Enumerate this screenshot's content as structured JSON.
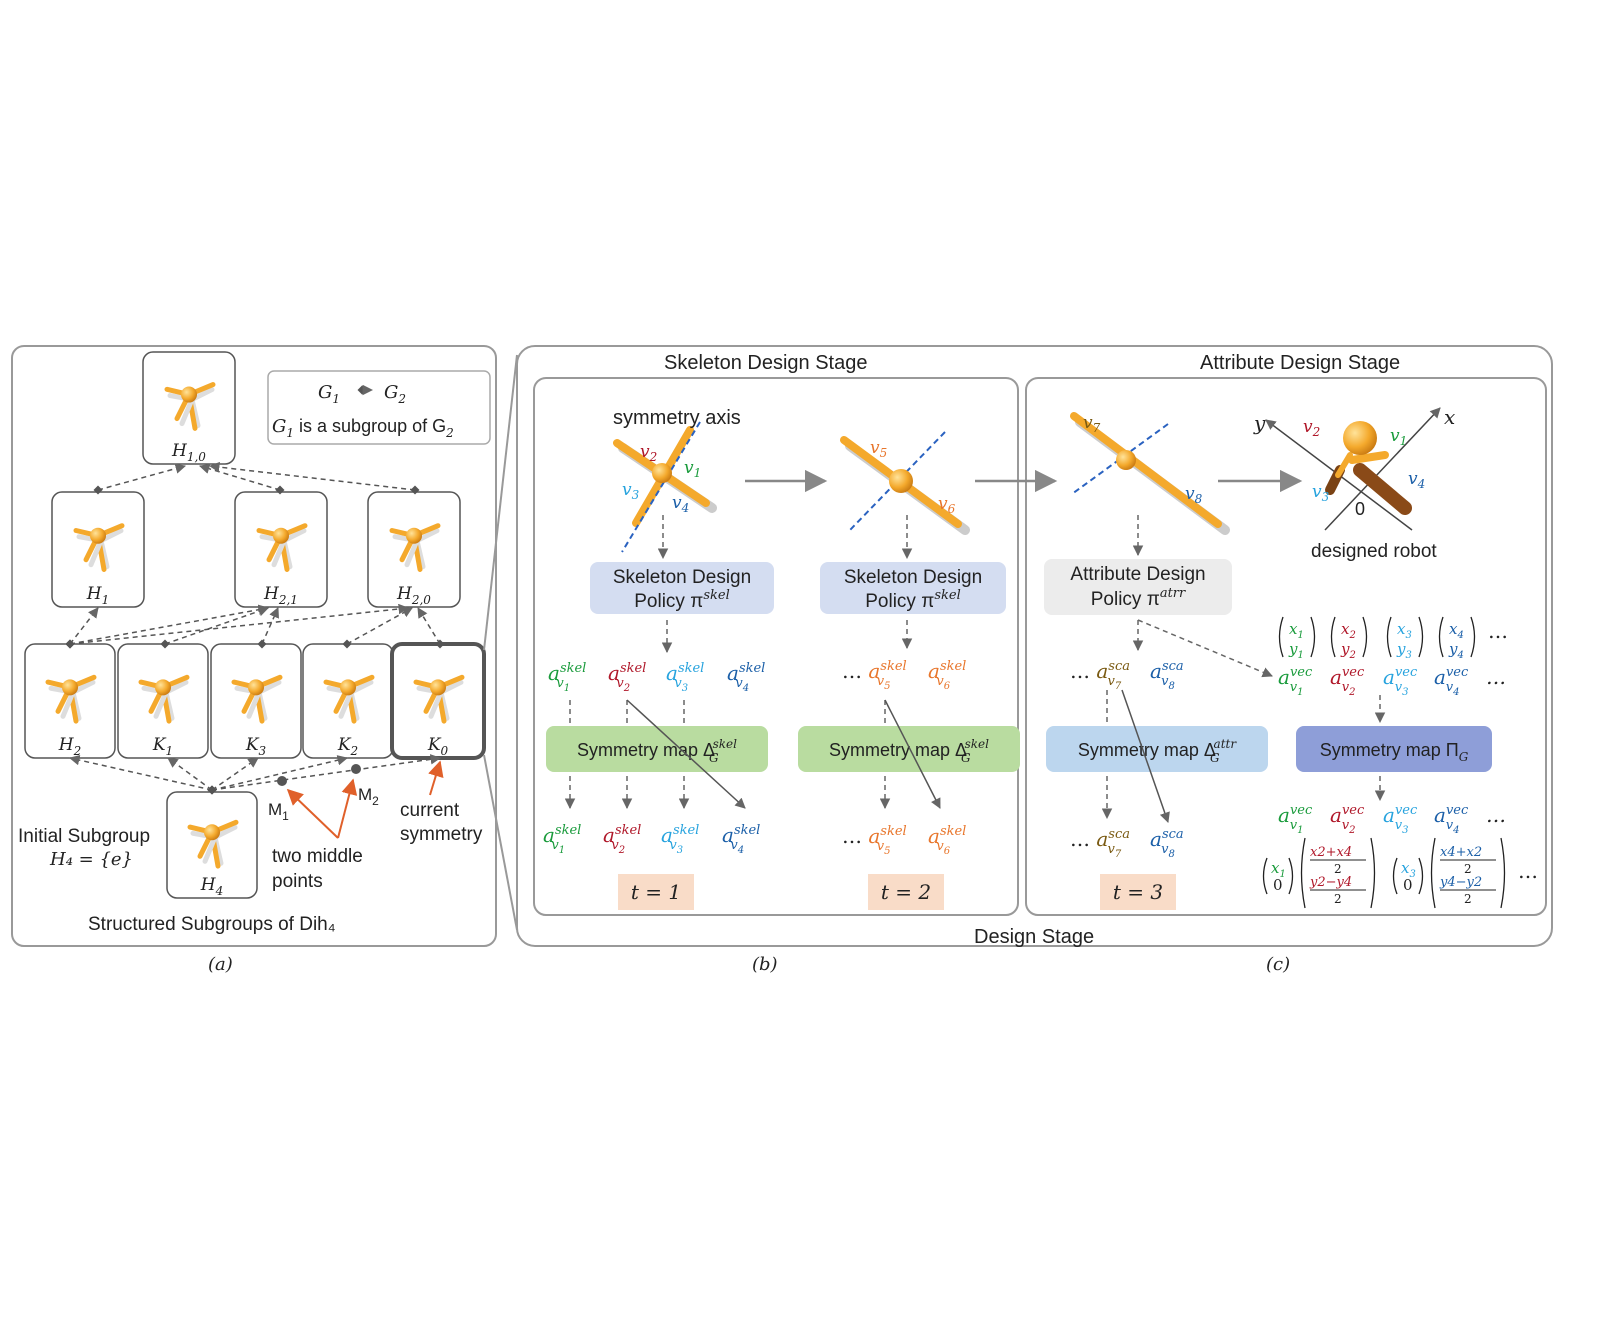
{
  "panel_a": {
    "legend_rel_g1": "G",
    "legend_rel_g1_sub": "1",
    "legend_rel_g2": "G",
    "legend_rel_g2_sub": "2",
    "legend_text_pre": "G",
    "legend_text_mid": " is a subgroup of G",
    "legend_sub1": "1",
    "legend_sub2": "2",
    "nodes": {
      "h10": {
        "name": "H",
        "sub": "1,0"
      },
      "h1": {
        "name": "H",
        "sub": "1"
      },
      "h21": {
        "name": "H",
        "sub": "2,1"
      },
      "h20": {
        "name": "H",
        "sub": "2,0"
      },
      "h2": {
        "name": "H",
        "sub": "2"
      },
      "k1": {
        "name": "K",
        "sub": "1"
      },
      "k3": {
        "name": "K",
        "sub": "3"
      },
      "k2": {
        "name": "K",
        "sub": "2"
      },
      "k0": {
        "name": "K",
        "sub": "0"
      },
      "h4": {
        "name": "H",
        "sub": "4"
      }
    },
    "m1": {
      "name": "M",
      "sub": "1"
    },
    "m2": {
      "name": "M",
      "sub": "2"
    },
    "initial_subgroup": "Initial Subgroup",
    "initial_formula": "H₄ = {e}",
    "two_middle_1": "two middle",
    "two_middle_2": "points",
    "current_1": "current",
    "current_2": "symmetry",
    "caption": "Structured Subgroups of Dih₄",
    "label": "(a)"
  },
  "panel_b": {
    "stage_title": "Skeleton Design Stage",
    "symmetry_axis": "symmetry axis",
    "policy_line1": "Skeleton Design",
    "policy_line2": "Policy π",
    "policy_sup": "skel",
    "map_text": "Symmetry map Δ",
    "map_sub": "G",
    "map_sup": "skel",
    "t1": "t = 1",
    "t2": "t = 2",
    "ellipsis": "…",
    "label": "(b)",
    "colors": {
      "v1": "#1a9b3c",
      "v2": "#b0182a",
      "v3": "#27a3de",
      "v4": "#1b5fa8",
      "v5": "#e8762c",
      "v6": "#e8762c",
      "v7": "#7a5a12",
      "v8": "#1b5fa8"
    }
  },
  "panel_c": {
    "stage_title": "Attribute Design Stage",
    "designed_robot": "designed robot",
    "policy_line1": "Attribute Design",
    "policy_line2": "Policy π",
    "policy_sup": "atrr",
    "map_attr_text": "Symmetry map Δ",
    "map_attr_sup": "attr",
    "map_pi_text": "Symmetry map Π",
    "map_pi_sub": "G",
    "t3": "t = 3",
    "zero": "0",
    "axis_x": "x",
    "axis_y": "y",
    "label": "(c)"
  },
  "design_stage": "Design Stage"
}
